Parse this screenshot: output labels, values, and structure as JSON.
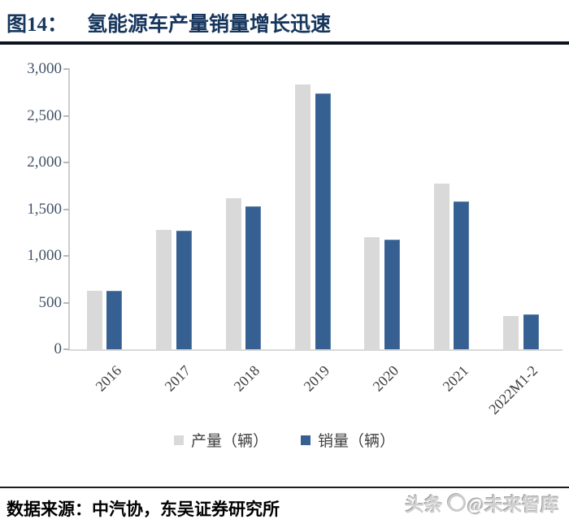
{
  "header": {
    "figure_label": "图14：",
    "title": "氢能源车产量销量增长迅速"
  },
  "chart_data": {
    "type": "bar",
    "title": "氢能源车产量销量增长迅速",
    "categories": [
      "2016",
      "2017",
      "2018",
      "2019",
      "2020",
      "2021",
      "2022M1-2"
    ],
    "series": [
      {
        "id": "production",
        "name": "产量（辆）",
        "color": "#d9d9d9",
        "values": [
          629,
          1275,
          1619,
          2833,
          1199,
          1777,
          356
        ]
      },
      {
        "id": "sales",
        "name": "销量（辆）",
        "color": "#376092",
        "values": [
          629,
          1272,
          1527,
          2737,
          1177,
          1586,
          371
        ]
      }
    ],
    "ylim": [
      0,
      3000
    ],
    "ytick_step": 500,
    "ytick_labels_top_to_bottom": [
      "3,000",
      "2,500",
      "2,000",
      "1,500",
      "1,000",
      "500",
      "0"
    ],
    "grid": false,
    "legend_position": "bottom"
  },
  "footer": {
    "source_text": "数据来源：中汽协，东吴证券研究所"
  },
  "watermark": {
    "prefix": "头条",
    "suffix": "@未来智库"
  },
  "colors": {
    "title_navy": "#17365d",
    "production_gray": "#d9d9d9",
    "sales_blue": "#376092",
    "axis_gray": "#cdcdcd",
    "ytick_label": "#44546a"
  }
}
